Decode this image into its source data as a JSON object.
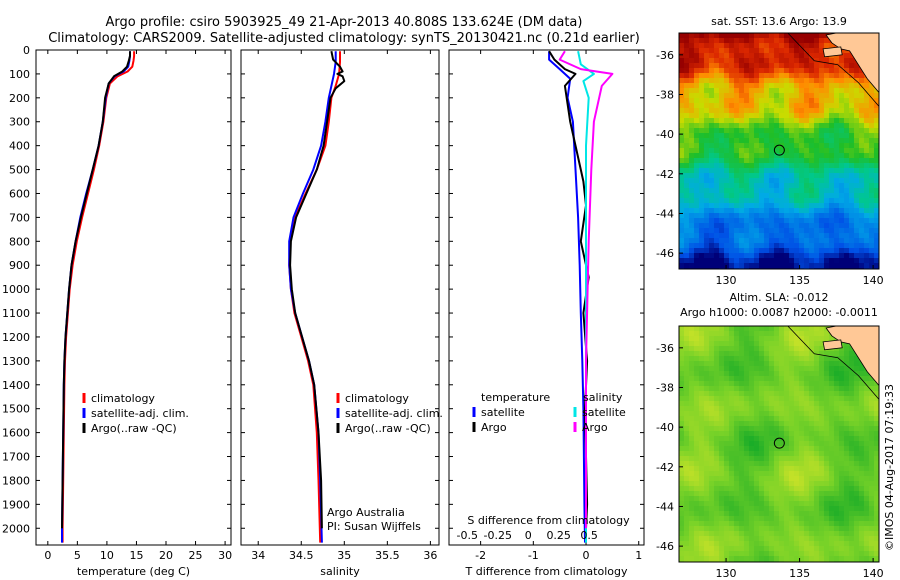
{
  "header": {
    "line1": "Argo profile: csiro 5903925_49 21-Apr-2013 40.808S 133.624E (DM data)",
    "line2": "Climatology: CARS2009. Satellite-adjusted climatology: synTS_20130421.nc (0.21d earlier)"
  },
  "colors": {
    "climatology": "#ff0000",
    "satellite": "#0000ff",
    "argo": "#000000",
    "sal_satellite": "#00e6e6",
    "sal_argo": "#ff00ff",
    "land": "#ffc896"
  },
  "chart_data": [
    {
      "type": "line",
      "name": "temperature-profile",
      "xlabel": "temperature (deg C)",
      "xlim": [
        -2,
        31
      ],
      "ylim": [
        0,
        2070
      ],
      "xticks": [
        0,
        5,
        10,
        15,
        20,
        25,
        30
      ],
      "xtick_labels": [
        "0",
        "5",
        "10",
        "15",
        "20",
        "25",
        "30"
      ],
      "yticks": [
        0,
        100,
        200,
        300,
        400,
        500,
        600,
        700,
        800,
        900,
        1000,
        1100,
        1200,
        1300,
        1400,
        1500,
        1600,
        1700,
        1800,
        1900,
        2000
      ],
      "ytick_labels": [
        "0",
        "100",
        "200",
        "300",
        "400",
        "500",
        "600",
        "700",
        "800",
        "900",
        "1000",
        "1100",
        "1200",
        "1300",
        "1400",
        "1500",
        "1600",
        "1700",
        "1800",
        "1900",
        "2000"
      ],
      "legend": [
        "climatology",
        "satellite-adj. clim.",
        "Argo(..raw -QC)"
      ],
      "series": [
        {
          "name": "climatology",
          "color": "#ff0000",
          "x": [
            14.6,
            14.6,
            14.5,
            14.3,
            13.5,
            11.8,
            10.5,
            9.9,
            9.4,
            8.7,
            7.8,
            6.8,
            5.8,
            4.9,
            4.2,
            3.7,
            3.4,
            3.1,
            2.9,
            2.8,
            2.7,
            2.6,
            2.5,
            2.5
          ],
          "y": [
            5,
            25,
            45,
            70,
            90,
            110,
            140,
            200,
            300,
            400,
            500,
            600,
            700,
            800,
            900,
            1000,
            1100,
            1200,
            1300,
            1400,
            1600,
            1800,
            2000,
            2060
          ]
        },
        {
          "name": "satellite-adj. clim.",
          "color": "#0000ff",
          "x": [
            13.9,
            13.9,
            13.8,
            13.6,
            12.8,
            11.3,
            10.3,
            9.8,
            9.3,
            8.6,
            7.6,
            6.5,
            5.5,
            4.7,
            4.0,
            3.6,
            3.3,
            3.0,
            2.8,
            2.7,
            2.6,
            2.5,
            2.4,
            2.4
          ],
          "y": [
            5,
            25,
            45,
            70,
            90,
            110,
            140,
            200,
            300,
            400,
            500,
            600,
            700,
            800,
            900,
            1000,
            1100,
            1200,
            1300,
            1400,
            1600,
            1800,
            2000,
            2060
          ]
        },
        {
          "name": "Argo(..raw -QC)",
          "color": "#000000",
          "x": [
            13.9,
            13.9,
            13.7,
            13.4,
            12.6,
            11.2,
            10.3,
            9.7,
            9.3,
            8.6,
            7.6,
            6.6,
            5.6,
            4.7,
            4.0,
            3.6,
            3.3,
            3.0,
            2.8,
            2.7,
            2.6,
            2.5,
            2.4
          ],
          "y": [
            5,
            25,
            45,
            70,
            90,
            110,
            140,
            200,
            300,
            400,
            500,
            600,
            700,
            800,
            900,
            1000,
            1100,
            1200,
            1300,
            1400,
            1600,
            1800,
            2000
          ]
        }
      ]
    },
    {
      "type": "line",
      "name": "salinity-profile",
      "xlabel": "salinity",
      "xlim": [
        33.8,
        36.1
      ],
      "ylim": [
        0,
        2070
      ],
      "xticks": [
        34,
        34.5,
        35,
        35.5,
        36
      ],
      "xtick_labels": [
        "34",
        "34.5",
        "35",
        "35.5",
        "36"
      ],
      "legend": [
        "climatology",
        "satellite-adj. clim.",
        "Argo(..raw -QC)"
      ],
      "annotation": [
        "Argo Australia",
        "PI: Susan Wijffels"
      ],
      "series": [
        {
          "name": "climatology",
          "color": "#ff0000",
          "x": [
            34.95,
            34.95,
            34.94,
            34.9,
            34.85,
            34.82,
            34.78,
            34.68,
            34.55,
            34.43,
            34.37,
            34.36,
            34.38,
            34.42,
            34.5,
            34.58,
            34.64,
            34.68,
            34.7,
            34.72
          ],
          "y": [
            5,
            50,
            100,
            150,
            200,
            300,
            400,
            500,
            600,
            700,
            800,
            900,
            1000,
            1100,
            1200,
            1300,
            1400,
            1600,
            1800,
            2060
          ]
        },
        {
          "name": "satellite-adj. clim.",
          "color": "#0000ff",
          "x": [
            34.9,
            34.9,
            34.88,
            34.85,
            34.82,
            34.78,
            34.73,
            34.64,
            34.52,
            34.41,
            34.36,
            34.36,
            34.38,
            34.43,
            34.51,
            34.59,
            34.65,
            34.7,
            34.72,
            34.74
          ],
          "y": [
            5,
            50,
            100,
            150,
            200,
            300,
            400,
            500,
            600,
            700,
            800,
            900,
            1000,
            1100,
            1200,
            1300,
            1400,
            1600,
            1800,
            2060
          ]
        },
        {
          "name": "Argo(..raw -QC)",
          "color": "#000000",
          "x": [
            34.85,
            34.87,
            34.95,
            34.98,
            34.92,
            34.98,
            35.0,
            34.9,
            34.84,
            34.8,
            34.76,
            34.68,
            34.56,
            34.44,
            34.38,
            34.37,
            34.39,
            34.43,
            34.51,
            34.59,
            34.65,
            34.7,
            34.73,
            34.74
          ],
          "y": [
            5,
            40,
            70,
            90,
            100,
            110,
            130,
            160,
            200,
            300,
            400,
            500,
            600,
            700,
            800,
            900,
            1000,
            1100,
            1200,
            1300,
            1400,
            1600,
            1800,
            2000
          ]
        }
      ]
    },
    {
      "type": "line",
      "name": "difference-profile",
      "xlabel": "T difference from climatology",
      "s_axis_label": "S difference from climatology",
      "xlim": [
        -2.6,
        1.1
      ],
      "ylim": [
        0,
        2070
      ],
      "xticks": [
        -2,
        -1,
        0,
        1
      ],
      "xtick_labels": [
        "-2",
        "-1",
        "0",
        "1"
      ],
      "s_ticks": [
        -0.5,
        -0.25,
        0,
        0.25,
        0.5
      ],
      "s_tick_labels": [
        "-0.5",
        "-0.25",
        "0",
        "0.25",
        "0.5"
      ],
      "legend_headings": [
        "temperature",
        "salinity"
      ],
      "legend": [
        "satellite",
        "Argo",
        "satellite",
        "Argo"
      ],
      "series": [
        {
          "name": "T satellite",
          "color": "#0000ff",
          "x": [
            -0.7,
            -0.7,
            -0.5,
            -0.3,
            -0.35,
            -0.25,
            -0.2,
            -0.15,
            -0.12,
            -0.1,
            -0.07,
            -0.05,
            -0.04,
            -0.03,
            -0.02
          ],
          "y": [
            5,
            40,
            80,
            120,
            200,
            300,
            500,
            700,
            900,
            1100,
            1300,
            1500,
            1700,
            1900,
            2060
          ]
        },
        {
          "name": "T Argo",
          "color": "#000000",
          "x": [
            -0.7,
            -0.6,
            -0.4,
            -0.2,
            -0.4,
            -0.3,
            -0.1,
            -0.05,
            0.0,
            -0.1,
            0.05,
            -0.05,
            0.02,
            -0.02,
            0.0,
            0.02,
            0.0
          ],
          "y": [
            5,
            40,
            80,
            100,
            150,
            300,
            500,
            550,
            650,
            800,
            950,
            1100,
            1300,
            1500,
            1700,
            1900,
            2000
          ]
        },
        {
          "name": "S satellite",
          "color": "#00e6e6",
          "x": [
            -0.15,
            -0.1,
            0.15,
            -0.05,
            0.05,
            0.0,
            0.0,
            0.0,
            0.0
          ],
          "y": [
            5,
            60,
            100,
            130,
            200,
            400,
            800,
            1400,
            2060
          ]
        },
        {
          "name": "S Argo",
          "color": "#ff00ff",
          "x": [
            -0.4,
            -0.5,
            -0.1,
            0.5,
            0.3,
            0.15,
            0.1,
            0.05,
            0.0,
            0.0
          ],
          "y": [
            5,
            40,
            80,
            100,
            150,
            300,
            500,
            800,
            1300,
            2000
          ]
        }
      ]
    },
    {
      "type": "heatmap",
      "name": "sst-map",
      "title": "sat. SST: 13.6 Argo: 13.9",
      "xticks": [
        130,
        135,
        140
      ],
      "xtick_labels": [
        "130",
        "135",
        "140"
      ],
      "yticks": [
        -36,
        -38,
        -40,
        -42,
        -44,
        -46
      ],
      "ytick_labels": [
        "-36",
        "-38",
        "-40",
        "-42",
        "-44",
        "-46"
      ],
      "xlim": [
        126.8,
        140.4
      ],
      "ylim": [
        -46.8,
        -34.9
      ],
      "marker": {
        "lon": 133.624,
        "lat": -40.808
      }
    },
    {
      "type": "heatmap",
      "name": "sla-map",
      "title": [
        "Altim. SLA: -0.012",
        "Argo h1000: 0.0087 h2000: -0.0011"
      ],
      "xticks": [
        130,
        135,
        140
      ],
      "xtick_labels": [
        "130",
        "135",
        "140"
      ],
      "yticks": [
        -36,
        -38,
        -40,
        -42,
        -44,
        -46
      ],
      "ytick_labels": [
        "-36",
        "-38",
        "-40",
        "-42",
        "-44",
        "-46"
      ],
      "xlim": [
        126.8,
        140.4
      ],
      "ylim": [
        -46.8,
        -34.9
      ],
      "marker": {
        "lon": 133.624,
        "lat": -40.808
      }
    }
  ],
  "footer": {
    "stamp": "©IMOS 04-Aug-2017 07:19:33"
  }
}
